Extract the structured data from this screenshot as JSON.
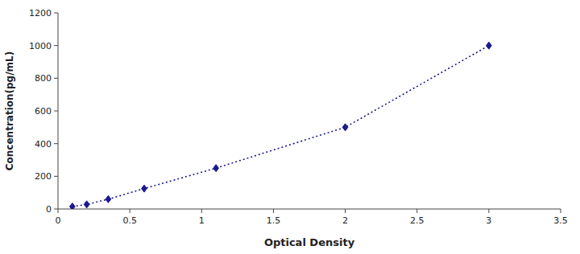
{
  "chart_data": {
    "type": "line",
    "x": [
      0.1,
      0.2,
      0.35,
      0.6,
      1.1,
      2.0,
      3.0
    ],
    "values": [
      15,
      28,
      60,
      125,
      250,
      500,
      1000
    ],
    "color": "#1a1a8c",
    "marker": "diamond",
    "line_style": "dotted",
    "xlabel": "Optical Density",
    "ylabel": "Concentration(pg/mL)",
    "xlim": [
      0,
      3.5
    ],
    "ylim": [
      0,
      1200
    ],
    "xticks": [
      0,
      0.5,
      1,
      1.5,
      2,
      2.5,
      3,
      3.5
    ],
    "yticks": [
      0,
      200,
      400,
      600,
      800,
      1000,
      1200
    ]
  }
}
